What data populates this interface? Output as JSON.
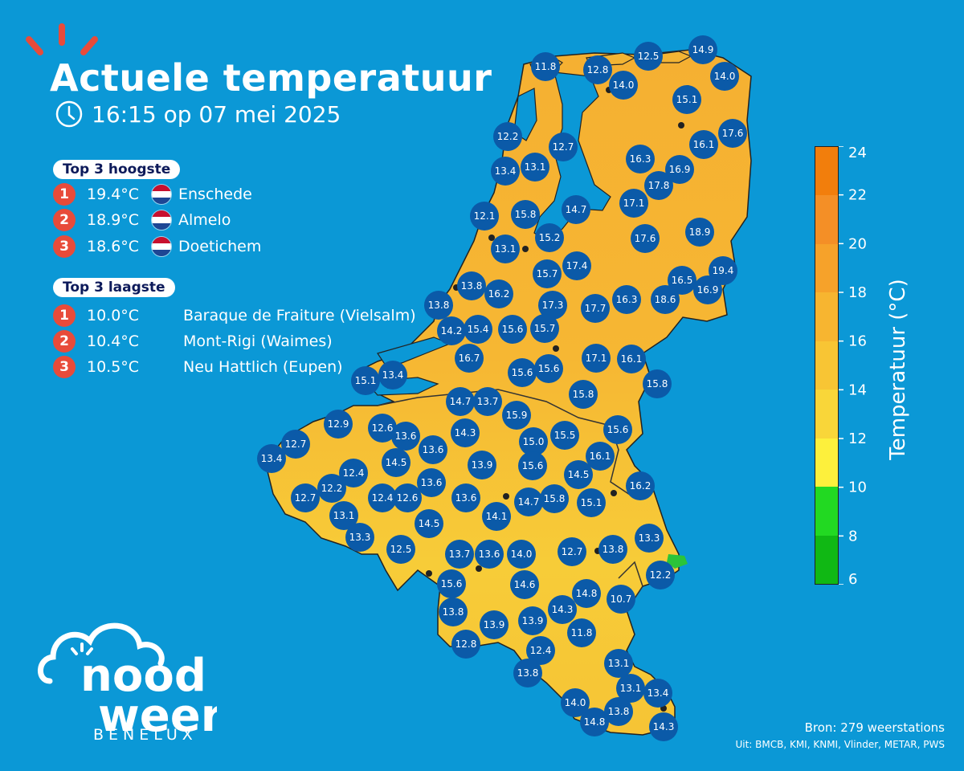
{
  "header": {
    "title": "Actuele temperatuur",
    "datetime": "16:15 op 07 mei 2025"
  },
  "top_highest": {
    "title": "Top 3 hoogste",
    "items": [
      {
        "rank": "1",
        "temp": "19.4°C",
        "country": "NL",
        "name": "Enschede"
      },
      {
        "rank": "2",
        "temp": "18.9°C",
        "country": "NL",
        "name": "Almelo"
      },
      {
        "rank": "3",
        "temp": "18.6°C",
        "country": "NL",
        "name": "Doetichem"
      }
    ]
  },
  "top_lowest": {
    "title": "Top 3 laagste",
    "items": [
      {
        "rank": "1",
        "temp": "10.0°C",
        "name": "Baraque de Fraiture (Vielsalm)"
      },
      {
        "rank": "2",
        "temp": "10.4°C",
        "name": "Mont-Rigi (Waimes)"
      },
      {
        "rank": "3",
        "temp": "10.5°C",
        "name": "Neu Hattlich (Eupen)"
      }
    ]
  },
  "colorbar": {
    "label": "Temperatuur (°C)",
    "ticks": [
      "24",
      "22",
      "20",
      "18",
      "16",
      "14",
      "12",
      "10",
      "8",
      "6"
    ],
    "min": 6,
    "max": 24
  },
  "stations": [
    "11.8",
    "12.8",
    "12.5",
    "14.9",
    "14.0",
    "14.0",
    "15.1",
    "12.2",
    "12.7",
    "16.1",
    "17.6",
    "13.4",
    "13.1",
    "16.3",
    "16.9",
    "17.8",
    "12.1",
    "15.8",
    "14.7",
    "17.1",
    "15.2",
    "17.6",
    "18.9",
    "13.1",
    "15.7",
    "17.4",
    "19.4",
    "13.8",
    "16.2",
    "16.5",
    "16.9",
    "13.8",
    "17.3",
    "17.7",
    "16.3",
    "18.6",
    "14.2",
    "15.4",
    "15.6",
    "15.7",
    "16.7",
    "17.1",
    "16.1",
    "15.1",
    "13.4",
    "15.6",
    "15.6",
    "15.8",
    "14.7",
    "13.7",
    "15.8",
    "15.9",
    "12.9",
    "12.6",
    "13.6",
    "14.3",
    "15.0",
    "15.5",
    "15.6",
    "12.7",
    "13.6",
    "13.4",
    "14.5",
    "12.4",
    "13.9",
    "15.6",
    "16.1",
    "14.5",
    "12.2",
    "13.6",
    "12.7",
    "12.4",
    "12.6",
    "13.6",
    "14.7",
    "15.8",
    "15.1",
    "16.2",
    "13.1",
    "14.1",
    "13.3",
    "14.5",
    "12.5",
    "13.7",
    "13.6",
    "14.0",
    "12.7",
    "13.8",
    "13.3",
    "12.2",
    "15.6",
    "14.6",
    "14.8",
    "10.7",
    "13.8",
    "14.3",
    "13.9",
    "13.9",
    "11.8",
    "12.8",
    "12.4",
    "13.1",
    "13.8",
    "13.1",
    "13.4",
    "14.0",
    "13.8",
    "14.8",
    "14.3"
  ],
  "logo": {
    "line1": "nood",
    "line2": "weer",
    "sub": "BENELUX"
  },
  "source": {
    "main": "Bron: 279 weerstations",
    "sub": "Uit: BMCB, KMI, KNMI, Vlinder, METAR, PWS"
  },
  "colors": {
    "background": "#0b98d6",
    "station_marker": "#0b5aa8",
    "rank_badge": "#e84b3a",
    "map_fill": "#f5b934",
    "accent": "#e84b3a"
  }
}
